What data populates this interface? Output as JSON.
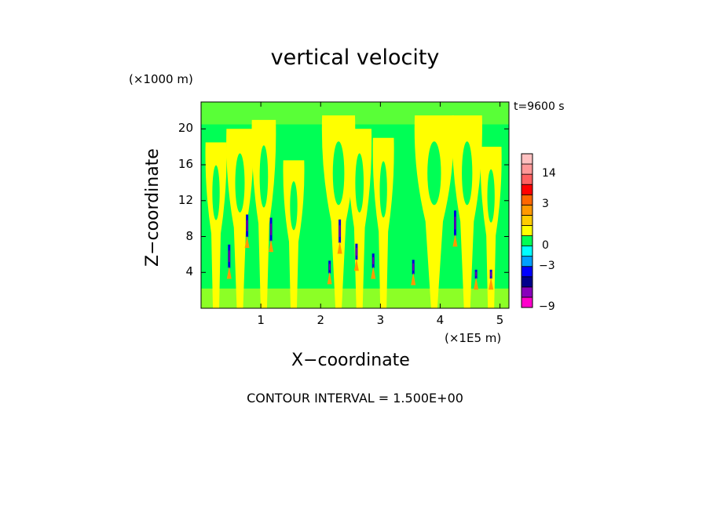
{
  "chart_data": {
    "type": "heatmap",
    "title": "vertical velocity",
    "time_label": "t=9600 s",
    "xlabel": "X−coordinate",
    "ylabel": "Z−coordinate",
    "x_unit": "(×1E5 m)",
    "y_unit": "(×1000 m)",
    "xlim": [
      0,
      5.15
    ],
    "ylim": [
      0,
      23
    ],
    "x_ticks": [
      1,
      2,
      3,
      4,
      5
    ],
    "y_ticks": [
      4,
      8,
      12,
      16,
      20
    ],
    "contour_interval_text": "CONTOUR INTERVAL = 1.500E+00",
    "colors": {
      "background_field": "#00ff55",
      "updraft_weak": "#ffff00",
      "downdraft_strong": "#0000dd",
      "downdraft_core": "#880099"
    },
    "colorbar": {
      "labels": [
        "14",
        "3",
        "0",
        "−3",
        "−9"
      ],
      "label_values": [
        14,
        3,
        0,
        -3,
        -9
      ],
      "range": [
        -9,
        20
      ],
      "segments": [
        {
          "from": -9,
          "to": -7.5,
          "color": "#ff00cc"
        },
        {
          "from": -7.5,
          "to": -6,
          "color": "#8800bb"
        },
        {
          "from": -6,
          "to": -4.5,
          "color": "#00008b"
        },
        {
          "from": -4.5,
          "to": -3,
          "color": "#0000ff"
        },
        {
          "from": -3,
          "to": -1.5,
          "color": "#00a0ff"
        },
        {
          "from": -1.5,
          "to": 0,
          "color": "#00ffff"
        },
        {
          "from": 0,
          "to": 0.75,
          "color": "#00ff55"
        },
        {
          "from": 0.75,
          "to": 1.5,
          "color": "#ffff00"
        },
        {
          "from": 1.5,
          "to": 2.25,
          "color": "#ffcc00"
        },
        {
          "from": 2.25,
          "to": 3,
          "color": "#ff9900"
        },
        {
          "from": 3,
          "to": 5,
          "color": "#ff6600"
        },
        {
          "from": 5,
          "to": 8,
          "color": "#ff0000"
        },
        {
          "from": 8,
          "to": 14,
          "color": "#ff6060"
        },
        {
          "from": 14,
          "to": 17,
          "color": "#ff9898"
        },
        {
          "from": 17,
          "to": 20,
          "color": "#ffc0c0"
        }
      ]
    },
    "updraft_plumes": [
      {
        "x": 0.25,
        "z_top": 18.5,
        "width": 0.35
      },
      {
        "x": 0.65,
        "z_top": 20.0,
        "width": 0.45
      },
      {
        "x": 1.05,
        "z_top": 21.0,
        "width": 0.4
      },
      {
        "x": 1.55,
        "z_top": 16.5,
        "width": 0.35
      },
      {
        "x": 2.3,
        "z_top": 21.5,
        "width": 0.55
      },
      {
        "x": 2.65,
        "z_top": 20.0,
        "width": 0.4
      },
      {
        "x": 3.05,
        "z_top": 19.0,
        "width": 0.35
      },
      {
        "x": 3.9,
        "z_top": 21.5,
        "width": 0.65
      },
      {
        "x": 4.45,
        "z_top": 21.5,
        "width": 0.5
      },
      {
        "x": 4.85,
        "z_top": 18.0,
        "width": 0.35
      }
    ],
    "downdraft_cores": [
      {
        "x": 0.47,
        "z_center": 5.8,
        "length": 2.6
      },
      {
        "x": 0.77,
        "z_center": 9.2,
        "length": 2.5
      },
      {
        "x": 1.17,
        "z_center": 8.8,
        "length": 2.6
      },
      {
        "x": 2.15,
        "z_center": 4.6,
        "length": 1.4
      },
      {
        "x": 2.32,
        "z_center": 8.6,
        "length": 2.6
      },
      {
        "x": 2.6,
        "z_center": 6.3,
        "length": 1.8
      },
      {
        "x": 2.88,
        "z_center": 5.3,
        "length": 1.6
      },
      {
        "x": 3.55,
        "z_center": 4.6,
        "length": 1.6
      },
      {
        "x": 4.25,
        "z_center": 9.5,
        "length": 2.8
      },
      {
        "x": 4.6,
        "z_center": 3.8,
        "length": 1.0
      },
      {
        "x": 4.85,
        "z_center": 3.8,
        "length": 1.0
      }
    ]
  }
}
